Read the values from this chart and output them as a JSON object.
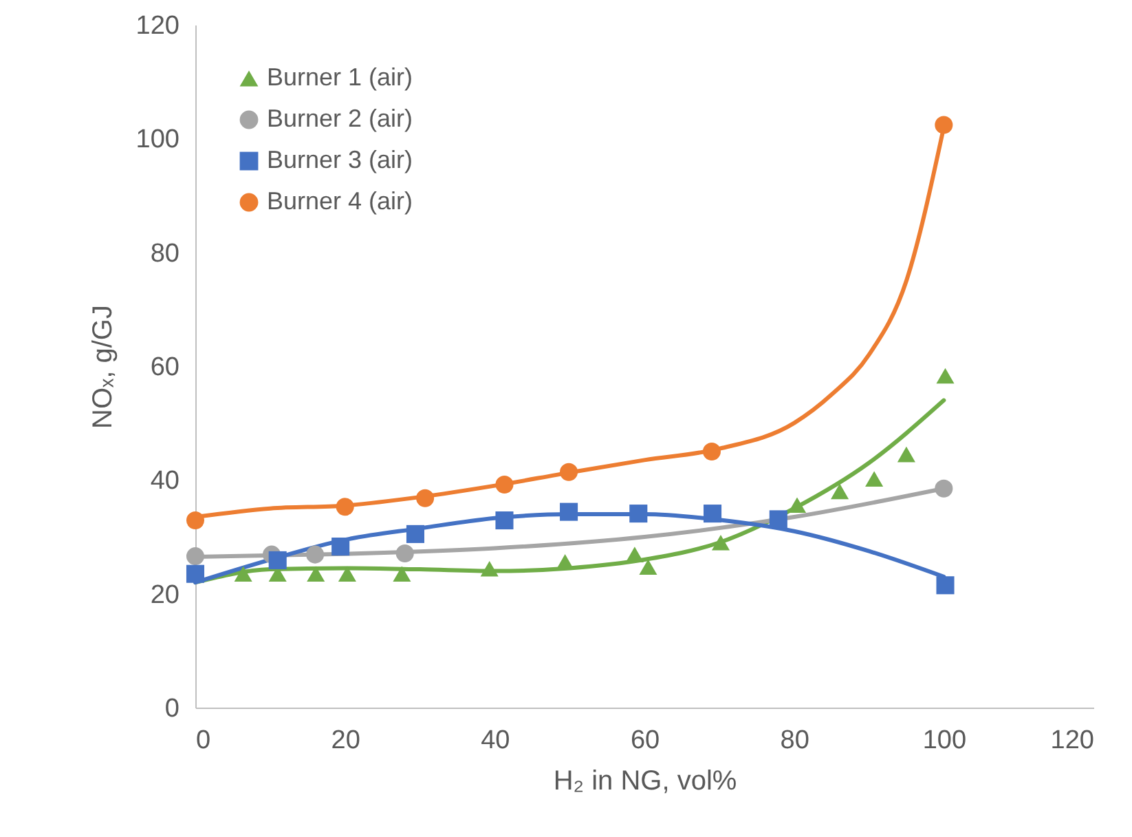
{
  "chart_data": {
    "type": "scatter",
    "xlabel": "H₂ in NG, vol%",
    "ylabel": "NOₓ, g/GJ",
    "xlim": [
      0,
      120
    ],
    "xticks": [
      0,
      20,
      40,
      60,
      80,
      100,
      120
    ],
    "ylim": [
      0,
      120
    ],
    "yticks": [
      0,
      20,
      40,
      60,
      80,
      100,
      120
    ],
    "grid": false,
    "legend": "top left",
    "series": [
      {
        "name": "Burner 1 (air)",
        "color": "#70ad47",
        "marker": "triangle",
        "x": [
          6.4,
          11,
          16.1,
          20.3,
          27.6,
          39.3,
          49.4,
          58.7,
          60.5,
          70.2,
          80.4,
          86.1,
          90.7,
          95,
          100.2
        ],
        "values": [
          23.5,
          23.5,
          23.5,
          23.5,
          23.5,
          24.4,
          25.6,
          26.9,
          24.7,
          29,
          35.6,
          38,
          40.2,
          44.5,
          58.3
        ]
      },
      {
        "name": "Burner 2 (air)",
        "color": "#a5a5a5",
        "marker": "circle",
        "x": [
          0,
          10.2,
          16,
          28,
          100
        ],
        "values": [
          26.6,
          26.9,
          26.9,
          27.1,
          38.5
        ]
      },
      {
        "name": "Burner 3 (air)",
        "color": "#4472c4",
        "marker": "square",
        "x": [
          0,
          11,
          19.4,
          29.4,
          41.3,
          49.9,
          59.2,
          69.1,
          77.9,
          100.2
        ],
        "values": [
          23.5,
          25.9,
          28.3,
          30.5,
          32.9,
          34.4,
          34.1,
          34.1,
          33.1,
          21.5
        ]
      },
      {
        "name": "Burner 4 (air)",
        "color": "#ed7d31",
        "marker": "circle",
        "x": [
          0,
          20,
          30.7,
          41.3,
          49.9,
          69,
          100
        ],
        "values": [
          32.9,
          35.3,
          36.8,
          39.2,
          41.4,
          45,
          102.4
        ]
      },
      {
        "type": "line",
        "color": "#70ad47",
        "x": [
          0,
          10,
          20,
          30,
          40,
          50,
          60,
          70,
          80,
          90,
          100
        ],
        "values": [
          22,
          24.3,
          24.5,
          24.3,
          24,
          24.5,
          26,
          29,
          35,
          43,
          54
        ]
      },
      {
        "type": "line",
        "color": "#a5a5a5",
        "x": [
          0,
          20,
          40,
          60,
          80,
          100
        ],
        "values": [
          26.5,
          27,
          28,
          30,
          33.5,
          38.5
        ]
      },
      {
        "type": "line",
        "color": "#4472c4",
        "x": [
          0,
          10,
          20,
          30,
          40,
          50,
          60,
          70,
          80,
          90,
          100
        ],
        "values": [
          22,
          26,
          29.5,
          31.5,
          33.3,
          34,
          34,
          33,
          31,
          27.5,
          23
        ]
      },
      {
        "type": "line",
        "color": "#ed7d31",
        "x": [
          0,
          10,
          20,
          30,
          40,
          50,
          60,
          70,
          80,
          85,
          90,
          95,
          100
        ],
        "values": [
          33.5,
          35,
          35.5,
          37,
          39,
          41.3,
          43.5,
          45.5,
          50,
          55,
          62,
          75,
          102
        ]
      }
    ]
  }
}
